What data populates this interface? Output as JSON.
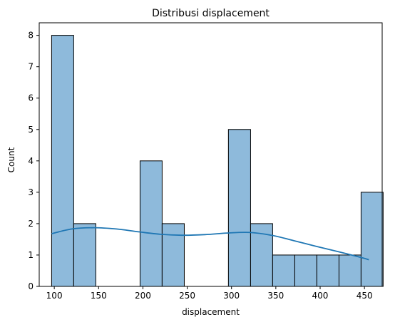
{
  "chart_data": {
    "type": "bar",
    "title": "Distribusi displacement",
    "xlabel": "displacement",
    "ylabel": "Count",
    "xlim": [
      83,
      470
    ],
    "ylim": [
      0,
      8.4
    ],
    "x_ticks": [
      100,
      150,
      200,
      250,
      300,
      350,
      400,
      450
    ],
    "y_ticks": [
      0,
      1,
      2,
      3,
      4,
      5,
      6,
      7,
      8
    ],
    "bins": [
      {
        "start": 97.0,
        "end": 121.9,
        "count": 8
      },
      {
        "start": 121.9,
        "end": 146.9,
        "count": 2
      },
      {
        "start": 146.9,
        "end": 171.8,
        "count": 0
      },
      {
        "start": 171.8,
        "end": 196.8,
        "count": 0
      },
      {
        "start": 196.8,
        "end": 221.7,
        "count": 4
      },
      {
        "start": 221.7,
        "end": 246.7,
        "count": 2
      },
      {
        "start": 246.7,
        "end": 271.6,
        "count": 0
      },
      {
        "start": 271.6,
        "end": 296.5,
        "count": 0
      },
      {
        "start": 296.5,
        "end": 321.5,
        "count": 5
      },
      {
        "start": 321.5,
        "end": 346.4,
        "count": 2
      },
      {
        "start": 346.4,
        "end": 371.4,
        "count": 1
      },
      {
        "start": 371.4,
        "end": 396.3,
        "count": 1
      },
      {
        "start": 396.3,
        "end": 421.3,
        "count": 1
      },
      {
        "start": 421.3,
        "end": 446.2,
        "count": 1
      },
      {
        "start": 446.2,
        "end": 471.1,
        "count": 3
      }
    ],
    "kde": {
      "x": [
        97,
        120,
        145,
        170,
        195,
        220,
        245,
        270,
        295,
        320,
        345,
        370,
        395,
        420,
        445,
        455
      ],
      "y": [
        1.68,
        1.83,
        1.87,
        1.83,
        1.74,
        1.66,
        1.63,
        1.65,
        1.7,
        1.72,
        1.63,
        1.46,
        1.28,
        1.11,
        0.93,
        0.85
      ]
    },
    "colors": {
      "bar_fill": "#8ebadb",
      "bar_edge": "#000000",
      "kde_line": "#1f77b4",
      "axis": "#000000"
    },
    "grid": false,
    "legend": "none"
  }
}
